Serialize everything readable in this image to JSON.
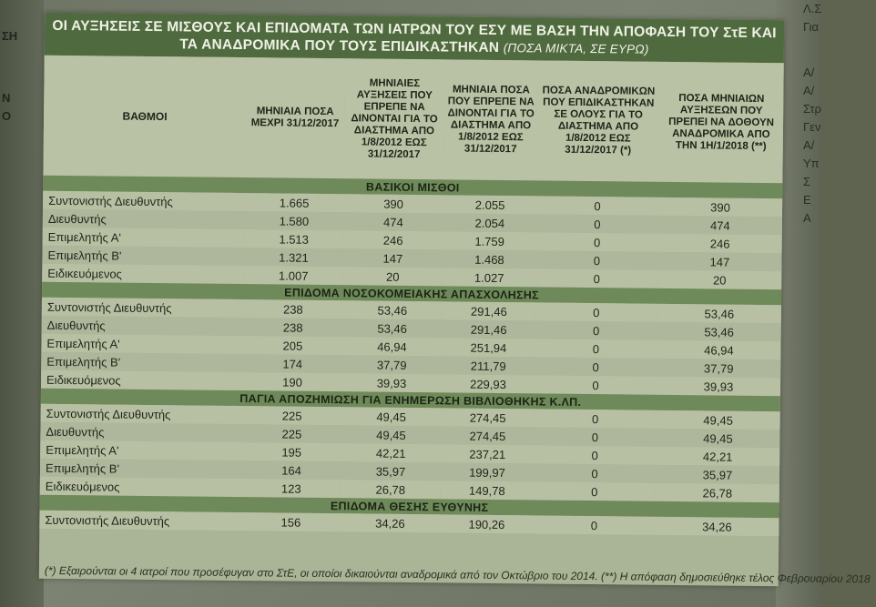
{
  "left_margin": [
    "ΣΗ",
    "Ν",
    "Ο"
  ],
  "right_margin": [
    "Λ.Σ",
    "Για",
    "Α/",
    "Α/",
    "Στρ",
    "Γεν",
    "Α/",
    "Υπ",
    "Σ",
    "Ε",
    "Α"
  ],
  "title": {
    "main": "ΟΙ ΑΥΞΗΣΕΙΣ ΣΕ ΜΙΣΘΟΥΣ ΚΑΙ ΕΠΙΔΟΜΑΤΑ ΤΩΝ ΙΑΤΡΩΝ ΤΟΥ ΕΣΥ ΜΕ ΒΑΣΗ ΤΗΝ ΑΠΟΦΑΣΗ ΤΟΥ ΣτΕ ΚΑΙ ΤΑ ΑΝΑΔΡΟΜΙΚΑ ΠΟΥ ΤΟΥΣ ΕΠΙΔΙΚΑΣΤΗΚΑΝ",
    "sub": "(ΠΟΣΑ ΜΙΚΤΑ, ΣΕ ΕΥΡΩ)"
  },
  "headers": [
    "ΒΑΘΜΟΙ",
    "ΜΗΝΙΑΙΑ ΠΟΣΑ ΜΕΧΡΙ 31/12/2017",
    "ΜΗΝΙΑΙΕΣ ΑΥΞΗΣΕΙΣ ΠΟΥ ΕΠΡΕΠΕ ΝΑ ΔΙΝΟΝΤΑΙ ΓΙΑ ΤΟ ΔΙΑΣΤΗΜΑ ΑΠΟ 1/8/2012 ΕΩΣ 31/12/2017",
    "ΜΗΝΙΑΙΑ ΠΟΣΑ ΠΟΥ ΕΠΡΕΠΕ ΝΑ ΔΙΝΟΝΤΑΙ ΓΙΑ ΤΟ ΔΙΑΣΤΗΜΑ ΑΠΟ 1/8/2012 ΕΩΣ 31/12/2017",
    "ΠΟΣΑ ΑΝΑΔΡΟΜΙΚΩΝ ΠΟΥ ΕΠΙΔΙΚΑΣΤΗΚΑΝ ΣΕ ΟΛΟΥΣ ΓΙΑ ΤΟ ΔΙΑΣΤΗΜΑ ΑΠΟ 1/8/2012 ΕΩΣ 31/12/2017 (*)",
    "ΠΟΣΑ ΜΗΝΙΑΙΩΝ ΑΥΞΗΣΕΩΝ ΠΟΥ ΠΡΕΠΕΙ ΝΑ ΔΟΘΟΥΝ ΑΝΑΔΡΟΜΙΚΑ ΑΠΟ ΤΗΝ 1Η/1/2018 (**)"
  ],
  "sections": [
    {
      "title": "ΒΑΣΙΚΟΙ ΜΙΣΘΟΙ",
      "rows": [
        [
          "Συντονιστής Διευθυντής",
          "1.665",
          "390",
          "2.055",
          "0",
          "390"
        ],
        [
          "Διευθυντής",
          "1.580",
          "474",
          "2.054",
          "0",
          "474"
        ],
        [
          "Επιμελητής Α'",
          "1.513",
          "246",
          "1.759",
          "0",
          "246"
        ],
        [
          "Επιμελητής Β'",
          "1.321",
          "147",
          "1.468",
          "0",
          "147"
        ],
        [
          "Ειδικευόμενος",
          "1.007",
          "20",
          "1.027",
          "0",
          "20"
        ]
      ]
    },
    {
      "title": "ΕΠΙΔΟΜΑ ΝΟΣΟΚΟΜΕΙΑΚΗΣ ΑΠΑΣΧΟΛΗΣΗΣ",
      "rows": [
        [
          "Συντονιστής Διευθυντής",
          "238",
          "53,46",
          "291,46",
          "0",
          "53,46"
        ],
        [
          "Διευθυντής",
          "238",
          "53,46",
          "291,46",
          "0",
          "53,46"
        ],
        [
          "Επιμελητής Α'",
          "205",
          "46,94",
          "251,94",
          "0",
          "46,94"
        ],
        [
          "Επιμελητής Β'",
          "174",
          "37,79",
          "211,79",
          "0",
          "37,79"
        ],
        [
          "Ειδικευόμενος",
          "190",
          "39,93",
          "229,93",
          "0",
          "39,93"
        ]
      ]
    },
    {
      "title": "ΠΑΓΙΑ ΑΠΟΖΗΜΙΩΣΗ ΓΙΑ ΕΝΗΜΕΡΩΣΗ ΒΙΒΛΙΟΘΗΚΗΣ Κ.ΛΠ.",
      "rows": [
        [
          "Συντονιστής Διευθυντής",
          "225",
          "49,45",
          "274,45",
          "0",
          "49,45"
        ],
        [
          "Διευθυντής",
          "225",
          "49,45",
          "274,45",
          "0",
          "49,45"
        ],
        [
          "Επιμελητής Α'",
          "195",
          "42,21",
          "237,21",
          "0",
          "42,21"
        ],
        [
          "Επιμελητής Β'",
          "164",
          "35,97",
          "199,97",
          "0",
          "35,97"
        ],
        [
          "Ειδικευόμενος",
          "123",
          "26,78",
          "149,78",
          "0",
          "26,78"
        ]
      ]
    },
    {
      "title": "ΕΠΙΔΟΜΑ ΘΕΣΗΣ ΕΥΘΥΝΗΣ",
      "rows": [
        [
          "Συντονιστής Διευθυντής",
          "156",
          "34,26",
          "190,26",
          "0",
          "34,26"
        ]
      ]
    }
  ],
  "footnote": "(*) Εξαιρούνται οι 4 ιατροί που προσέφυγαν στο ΣτΕ, οι οποίοι δικαιούνται αναδρομικά από τον Οκτώβριο του 2014. (**) Η απόφαση δημοσιεύθηκε τέλος Φεβρουαρίου 2018"
}
